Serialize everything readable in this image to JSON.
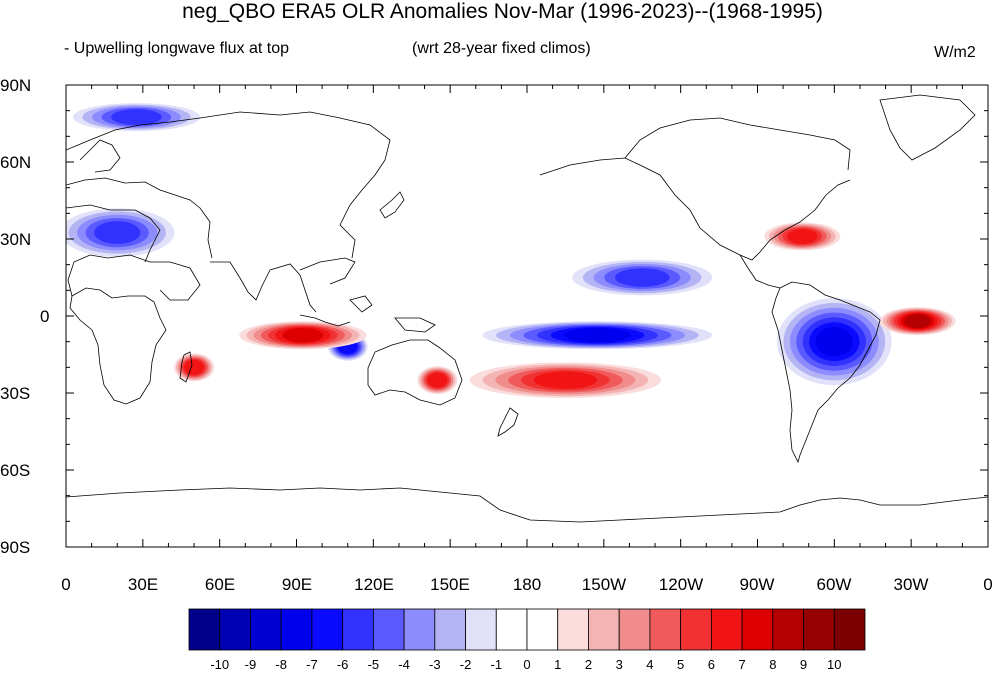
{
  "title": "neg_QBO ERA5 OLR Anomalies Nov-Mar (1996-2023)--(1968-1995)",
  "subtitle_left": "- Upwelling longwave flux at top",
  "subtitle_center": "(wrt 28-year fixed climos)",
  "units": "W/m2",
  "lat_labels": [
    "90N",
    "60N",
    "30N",
    "0",
    "30S",
    "60S",
    "90S"
  ],
  "lon_labels": [
    "0",
    "30E",
    "60E",
    "90E",
    "120E",
    "150E",
    "180",
    "150W",
    "120W",
    "90W",
    "60W",
    "30W",
    "0"
  ],
  "colorbar": {
    "labels": [
      "-10",
      "-9",
      "-8",
      "-7",
      "-6",
      "-5",
      "-4",
      "-3",
      "-2",
      "-1",
      "0",
      "1",
      "2",
      "3",
      "4",
      "5",
      "6",
      "7",
      "8",
      "9",
      "10"
    ],
    "colors": [
      "#00008b",
      "#0000b4",
      "#0000d2",
      "#0000ee",
      "#0a0aff",
      "#3232ff",
      "#5a5aff",
      "#8c8cff",
      "#b4b4f5",
      "#e1e1fa",
      "#ffffff",
      "#ffffff",
      "#fadcdc",
      "#f5b4b4",
      "#f08c8c",
      "#f05a5a",
      "#f03232",
      "#f01414",
      "#dc0000",
      "#b40000",
      "#960000",
      "#7d0000"
    ]
  },
  "anomaly_regions": [
    {
      "name": "pacific-blue-band",
      "lon": [
        165,
        250
      ],
      "lat": [
        -5,
        -10
      ],
      "value": -7
    },
    {
      "name": "maritime-blue",
      "lon": [
        105,
        115
      ],
      "lat": [
        -12,
        -12
      ],
      "value": -6
    },
    {
      "name": "indian-red",
      "lon": [
        70,
        115
      ],
      "lat": [
        -5,
        -10
      ],
      "value": 7
    },
    {
      "name": "south-pacific-red",
      "lon": [
        160,
        230
      ],
      "lat": [
        -20,
        -30
      ],
      "value": 6
    },
    {
      "name": "south-america-blue",
      "lon": [
        280,
        320
      ],
      "lat": [
        5,
        -25
      ],
      "value": -7
    },
    {
      "name": "south-atlantic-red",
      "lon": [
        320,
        345
      ],
      "lat": [
        -2,
        -2
      ],
      "value": 9
    },
    {
      "name": "north-america-red",
      "lon": [
        275,
        300
      ],
      "lat": [
        30,
        32
      ],
      "value": 6
    },
    {
      "name": "north-pacific-blue",
      "lon": [
        200,
        250
      ],
      "lat": [
        10,
        20
      ],
      "value": -5
    },
    {
      "name": "eurasia-blue",
      "lon": [
        0,
        40
      ],
      "lat": [
        25,
        40
      ],
      "value": -5
    },
    {
      "name": "arctic-blue",
      "lon": [
        5,
        50
      ],
      "lat": [
        75,
        80
      ],
      "value": -5
    },
    {
      "name": "madagascar-red",
      "lon": [
        45,
        55
      ],
      "lat": [
        -20,
        -20
      ],
      "value": 6
    },
    {
      "name": "australia-red",
      "lon": [
        140,
        150
      ],
      "lat": [
        -25,
        -25
      ],
      "value": 6
    }
  ]
}
